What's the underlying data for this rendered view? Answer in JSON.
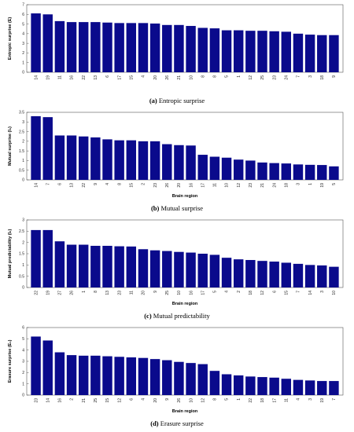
{
  "chart_data": [
    {
      "type": "bar",
      "panel_label": "(a)",
      "caption": "Entropic surprise",
      "xlabel": "",
      "ylabel": "Entropic surprise (E)",
      "ylim": [
        0,
        7
      ],
      "yticks": [
        0,
        1,
        2,
        3,
        4,
        5,
        6,
        7
      ],
      "grid": false,
      "color": "#0a0a8c",
      "categories": [
        "14",
        "19",
        "11",
        "16",
        "22",
        "13",
        "6",
        "17",
        "15",
        "4",
        "20",
        "26",
        "21",
        "10",
        "8",
        "8",
        "5",
        "1",
        "12",
        "25",
        "23",
        "24",
        "7",
        "3",
        "18",
        "9"
      ],
      "values": [
        6.1,
        6.0,
        5.3,
        5.2,
        5.2,
        5.2,
        5.15,
        5.1,
        5.1,
        5.1,
        5.05,
        4.9,
        4.9,
        4.8,
        4.6,
        4.55,
        4.35,
        4.35,
        4.3,
        4.3,
        4.25,
        4.2,
        4.0,
        3.9,
        3.85,
        3.85
      ]
    },
    {
      "type": "bar",
      "panel_label": "(b)",
      "caption": "Mutual surprise",
      "xlabel": "Brain region",
      "ylabel": "Mutual surprise (I₁)",
      "ylim": [
        0,
        3.5
      ],
      "yticks": [
        0,
        0.5,
        1,
        1.5,
        2,
        2.5,
        3,
        3.5
      ],
      "grid": false,
      "color": "#0a0a8c",
      "categories": [
        "14",
        "7",
        "6",
        "13",
        "22",
        "9",
        "4",
        "8",
        "15",
        "2",
        "23",
        "26",
        "20",
        "16",
        "17",
        "11",
        "10",
        "12",
        "23",
        "21",
        "24",
        "18",
        "3",
        "1",
        "19",
        "5"
      ],
      "values": [
        3.3,
        3.25,
        2.3,
        2.3,
        2.25,
        2.2,
        2.1,
        2.05,
        2.05,
        2.0,
        2.0,
        1.85,
        1.8,
        1.78,
        1.3,
        1.2,
        1.15,
        1.05,
        1.0,
        0.9,
        0.87,
        0.85,
        0.8,
        0.78,
        0.77,
        0.7
      ]
    },
    {
      "type": "bar",
      "panel_label": "(c)",
      "caption": "Mutual predictability",
      "xlabel": "Brain region",
      "ylabel": "Mutual predictability (I₂)",
      "ylim": [
        0,
        3
      ],
      "yticks": [
        0,
        0.5,
        1,
        1.5,
        2,
        2.5,
        3
      ],
      "grid": false,
      "color": "#0a0a8c",
      "categories": [
        "22",
        "19",
        "27",
        "26",
        "1",
        "8",
        "13",
        "23",
        "11",
        "20",
        "9",
        "25",
        "10",
        "16",
        "17",
        "5",
        "4",
        "2",
        "18",
        "12",
        "6",
        "15",
        "7",
        "14",
        "3",
        "10"
      ],
      "values": [
        2.55,
        2.55,
        2.05,
        1.9,
        1.9,
        1.85,
        1.85,
        1.83,
        1.82,
        1.7,
        1.65,
        1.62,
        1.58,
        1.55,
        1.5,
        1.45,
        1.32,
        1.25,
        1.22,
        1.18,
        1.15,
        1.1,
        1.05,
        1.0,
        0.98,
        0.92
      ]
    },
    {
      "type": "bar",
      "panel_label": "(d)",
      "caption": "Erasure surprise",
      "xlabel": "Brain region",
      "ylabel": "Erasure surprise (E₁)",
      "ylim": [
        0,
        6
      ],
      "yticks": [
        0,
        1,
        2,
        3,
        4,
        5,
        6
      ],
      "grid": false,
      "color": "#0a0a8c",
      "categories": [
        "23",
        "14",
        "16",
        "2",
        "21",
        "25",
        "15",
        "12",
        "6",
        "4",
        "20",
        "9",
        "26",
        "10",
        "12",
        "8",
        "5",
        "1",
        "22",
        "18",
        "17",
        "11",
        "4",
        "3",
        "19",
        "7"
      ],
      "values": [
        5.2,
        4.85,
        3.8,
        3.55,
        3.5,
        3.5,
        3.45,
        3.4,
        3.35,
        3.3,
        3.2,
        3.1,
        2.95,
        2.85,
        2.75,
        2.15,
        1.85,
        1.75,
        1.65,
        1.6,
        1.55,
        1.45,
        1.35,
        1.3,
        1.25,
        1.25
      ]
    }
  ]
}
